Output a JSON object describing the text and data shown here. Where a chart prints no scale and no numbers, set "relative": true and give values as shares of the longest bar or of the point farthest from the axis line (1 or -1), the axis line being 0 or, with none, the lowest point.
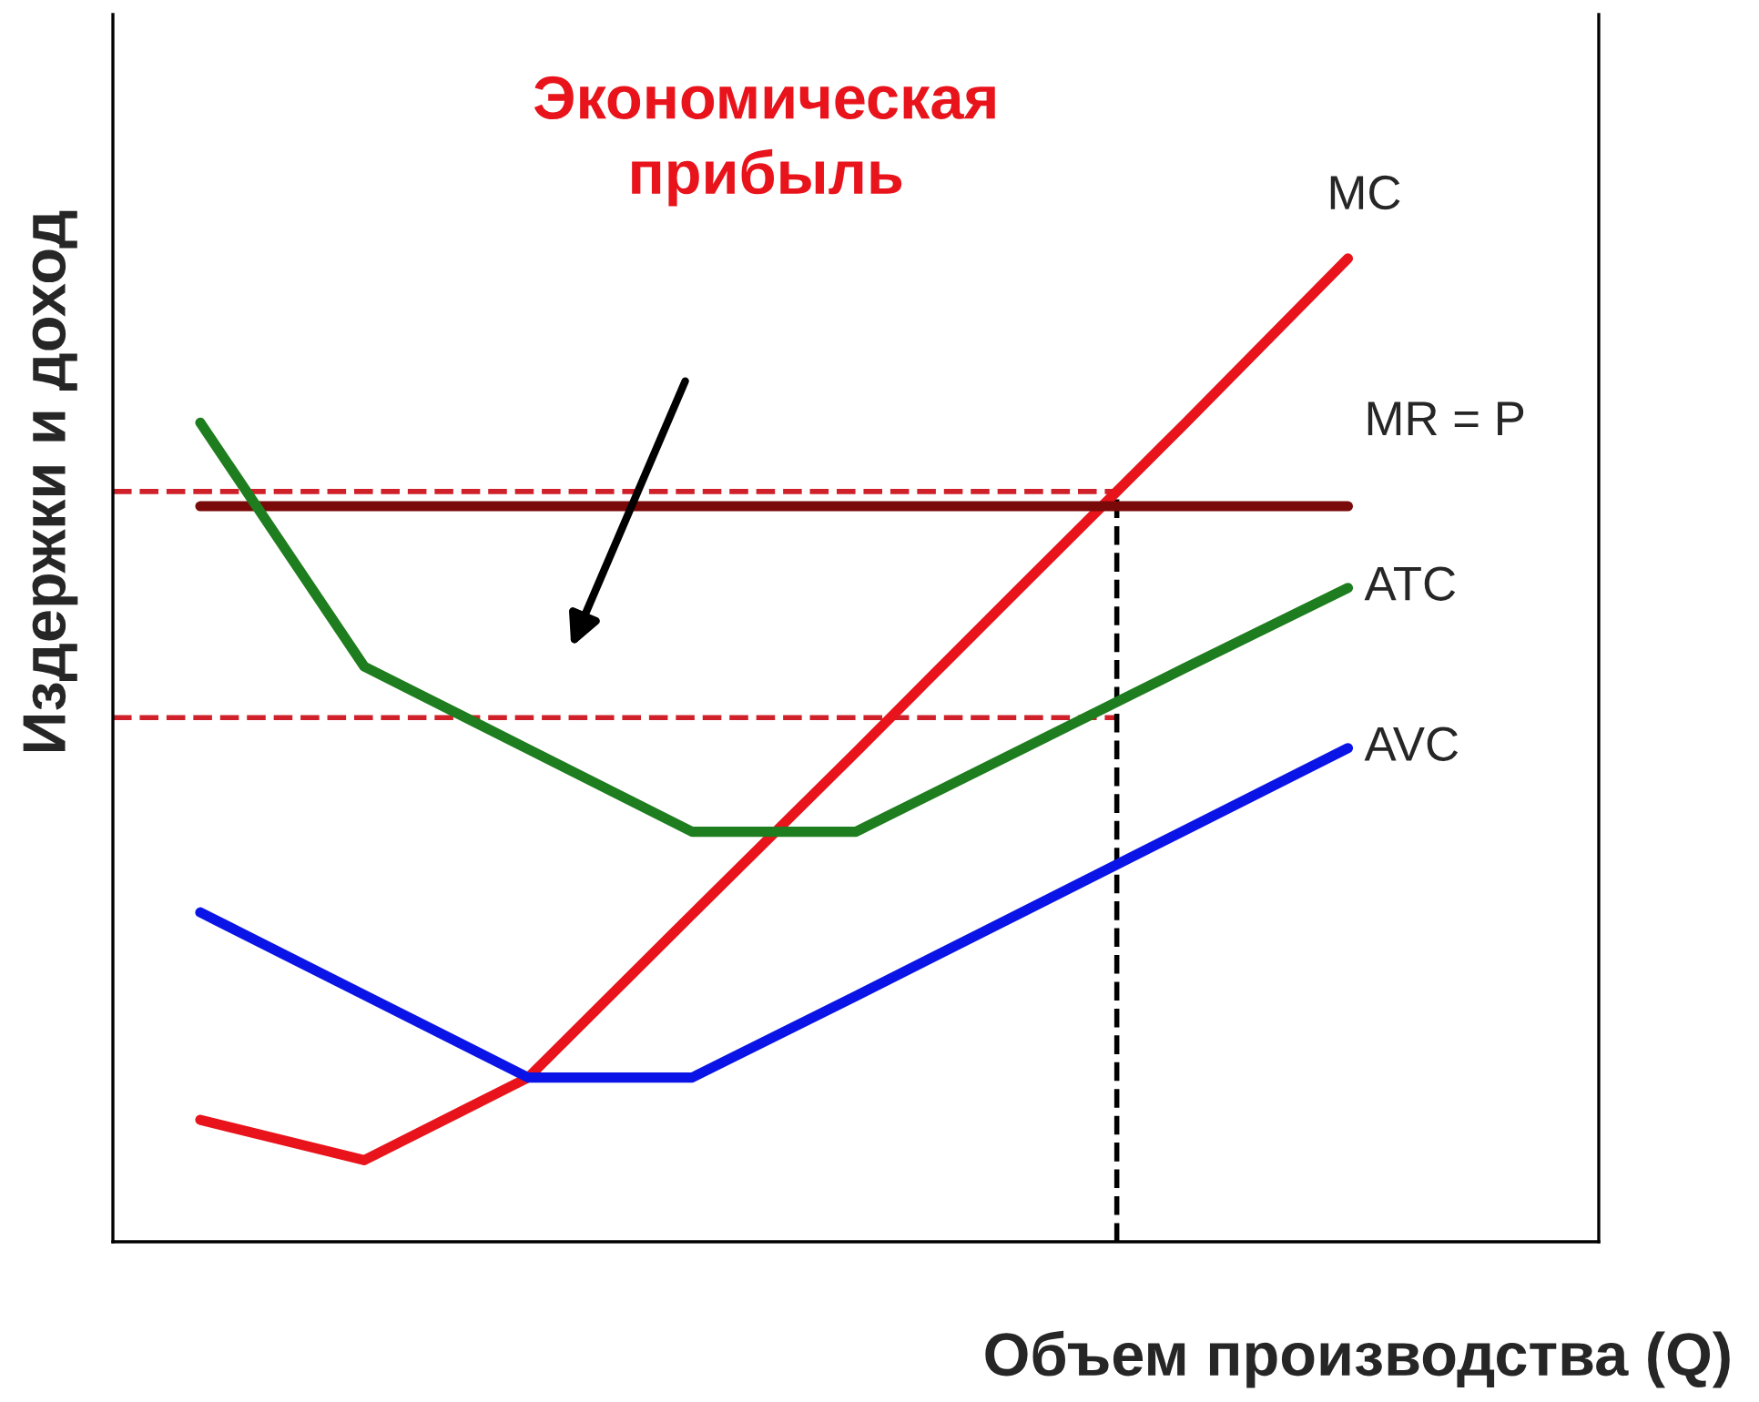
{
  "chart_data": {
    "type": "line",
    "relative": true,
    "xlabel": "Объем производства (Q)",
    "ylabel": "Издержки и доход",
    "categories": [
      null,
      null,
      null,
      null,
      null,
      null,
      null,
      null
    ],
    "series": [
      {
        "name": "MC",
        "color": "#e8131b",
        "values": [
          0.124,
          0.083,
          0.167,
          0.333,
          0.498,
          0.665,
          0.831,
          1.0
        ]
      },
      {
        "name": "MR = P",
        "color": "#7a0a0a",
        "values": [
          0.748,
          0.748,
          0.748,
          0.748,
          0.748,
          0.748,
          0.748,
          0.748
        ]
      },
      {
        "name": "ATC",
        "color": "#1e7d1e",
        "values": [
          0.833,
          0.585,
          0.501,
          0.417,
          0.417,
          0.5,
          0.583,
          0.665
        ]
      },
      {
        "name": "AVC",
        "color": "#0a14e6",
        "values": [
          0.335,
          0.251,
          0.167,
          0.167,
          0.25,
          0.334,
          0.418,
          0.502
        ]
      }
    ],
    "ref_lines": [
      {
        "axis": "y",
        "value": 0.763,
        "color": "#d0202a",
        "line_style": "dashed"
      },
      {
        "axis": "y",
        "value": 0.533,
        "color": "#d0202a",
        "line_style": "dashed"
      }
    ],
    "annotations": [
      "Экономическая прибыль"
    ],
    "marker": "none",
    "line_style": "solid",
    "legend": false
  }
}
